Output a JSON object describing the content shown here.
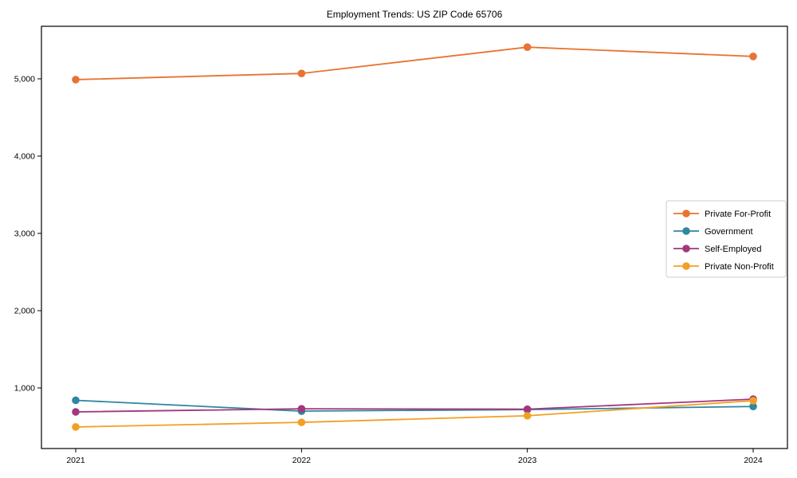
{
  "chart_data": {
    "type": "line",
    "title": "Employment Trends: US ZIP Code 65706",
    "xlabel": "",
    "ylabel": "",
    "x_categories": [
      "2021",
      "2022",
      "2023",
      "2024"
    ],
    "series": [
      {
        "name": "Private For-Profit",
        "color": "#e87332",
        "values": [
          4990,
          5070,
          5410,
          5290
        ]
      },
      {
        "name": "Government",
        "color": "#2f87a0",
        "values": [
          840,
          700,
          720,
          760
        ]
      },
      {
        "name": "Self-Employed",
        "color": "#a3377d",
        "values": [
          690,
          730,
          725,
          855
        ]
      },
      {
        "name": "Private Non-Profit",
        "color": "#f39f23",
        "values": [
          495,
          555,
          640,
          835
        ]
      }
    ],
    "yticks": [
      1000,
      2000,
      3000,
      4000,
      5000
    ],
    "ytick_labels": [
      "1,000",
      "2,000",
      "3,000",
      "4,000",
      "5,000"
    ],
    "ylim": [
      216,
      5680
    ],
    "grid": false,
    "legend_position": "center-right",
    "axis_color": "#000000",
    "legend_border_color": "#cccccc",
    "background_color": "#ffffff"
  }
}
